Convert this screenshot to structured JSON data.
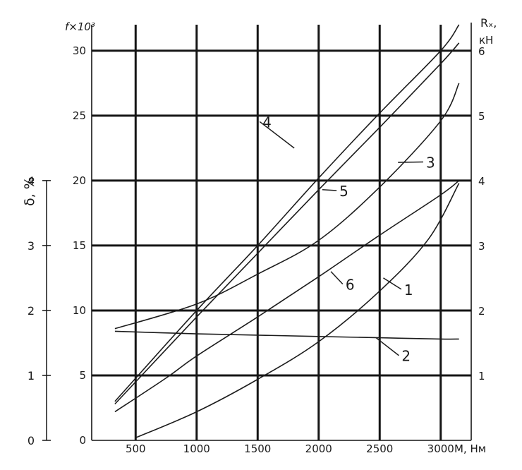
{
  "chart_data": {
    "type": "line",
    "x_axis": {
      "label": "M, Нм",
      "ticks": [
        "500",
        "1000",
        "1500",
        "2000",
        "2500",
        "3000"
      ],
      "range": [
        140,
        3250
      ]
    },
    "left_axis": {
      "label": "f×10³",
      "ticks": [
        "0",
        "5",
        "10",
        "15",
        "20",
        "25",
        "30"
      ],
      "range": [
        0,
        32
      ]
    },
    "right_axis": {
      "label_line1": "Rₓ,",
      "label_line2": "кН",
      "ticks": [
        "1",
        "2",
        "3",
        "4",
        "5",
        "6"
      ]
    },
    "delta_axis": {
      "label": "δ, %",
      "ticks": [
        "0",
        "1",
        "2",
        "3",
        "4"
      ]
    },
    "grid": true,
    "series": [
      {
        "name": "1",
        "x": [
          500,
          1000,
          1500,
          2000,
          2500,
          2900,
          3150
        ],
        "y": [
          0.2,
          2.2,
          4.7,
          7.6,
          11.5,
          15.5,
          19.8
        ]
      },
      {
        "name": "2",
        "x": [
          330,
          1000,
          1500,
          2000,
          2500,
          3000,
          3150
        ],
        "y": [
          8.4,
          8.2,
          8.1,
          8.0,
          7.9,
          7.8,
          7.8
        ]
      },
      {
        "name": "3",
        "x": [
          330,
          1000,
          1500,
          2000,
          2500,
          3000,
          3150
        ],
        "y": [
          8.6,
          10.5,
          12.8,
          15.4,
          19.5,
          24.6,
          27.5
        ]
      },
      {
        "name": "4",
        "x": [
          330,
          1000,
          1500,
          2000,
          2500,
          3000,
          3150
        ],
        "y": [
          3.0,
          10.0,
          15.0,
          20.2,
          25.2,
          30.0,
          32.0
        ]
      },
      {
        "name": "5",
        "x": [
          330,
          1000,
          1500,
          2000,
          2500,
          3000,
          3150
        ],
        "y": [
          2.8,
          9.5,
          14.4,
          19.3,
          24.1,
          29.0,
          30.6
        ]
      },
      {
        "name": "6",
        "x": [
          330,
          750,
          1000,
          1500,
          2000,
          2500,
          3000,
          3150
        ],
        "y": [
          2.2,
          4.8,
          6.5,
          9.5,
          12.6,
          15.8,
          18.9,
          20.0
        ]
      }
    ],
    "annotations": [
      {
        "text": "1",
        "x": 2700,
        "y": 11.2,
        "leader_to": [
          2530,
          12.5
        ]
      },
      {
        "text": "2",
        "x": 2680,
        "y": 6.1,
        "leader_to": [
          2470,
          7.9
        ]
      },
      {
        "text": "3",
        "x": 2880,
        "y": 21.0,
        "leader_to": [
          2650,
          21.4
        ]
      },
      {
        "text": "4",
        "x": 1540,
        "y": 24.1,
        "leader_to": [
          1800,
          22.5
        ]
      },
      {
        "text": "5",
        "x": 2170,
        "y": 18.8,
        "leader_to": [
          2030,
          19.3
        ]
      },
      {
        "text": "6",
        "x": 2220,
        "y": 11.6,
        "leader_to": [
          2100,
          13.0
        ]
      }
    ]
  }
}
